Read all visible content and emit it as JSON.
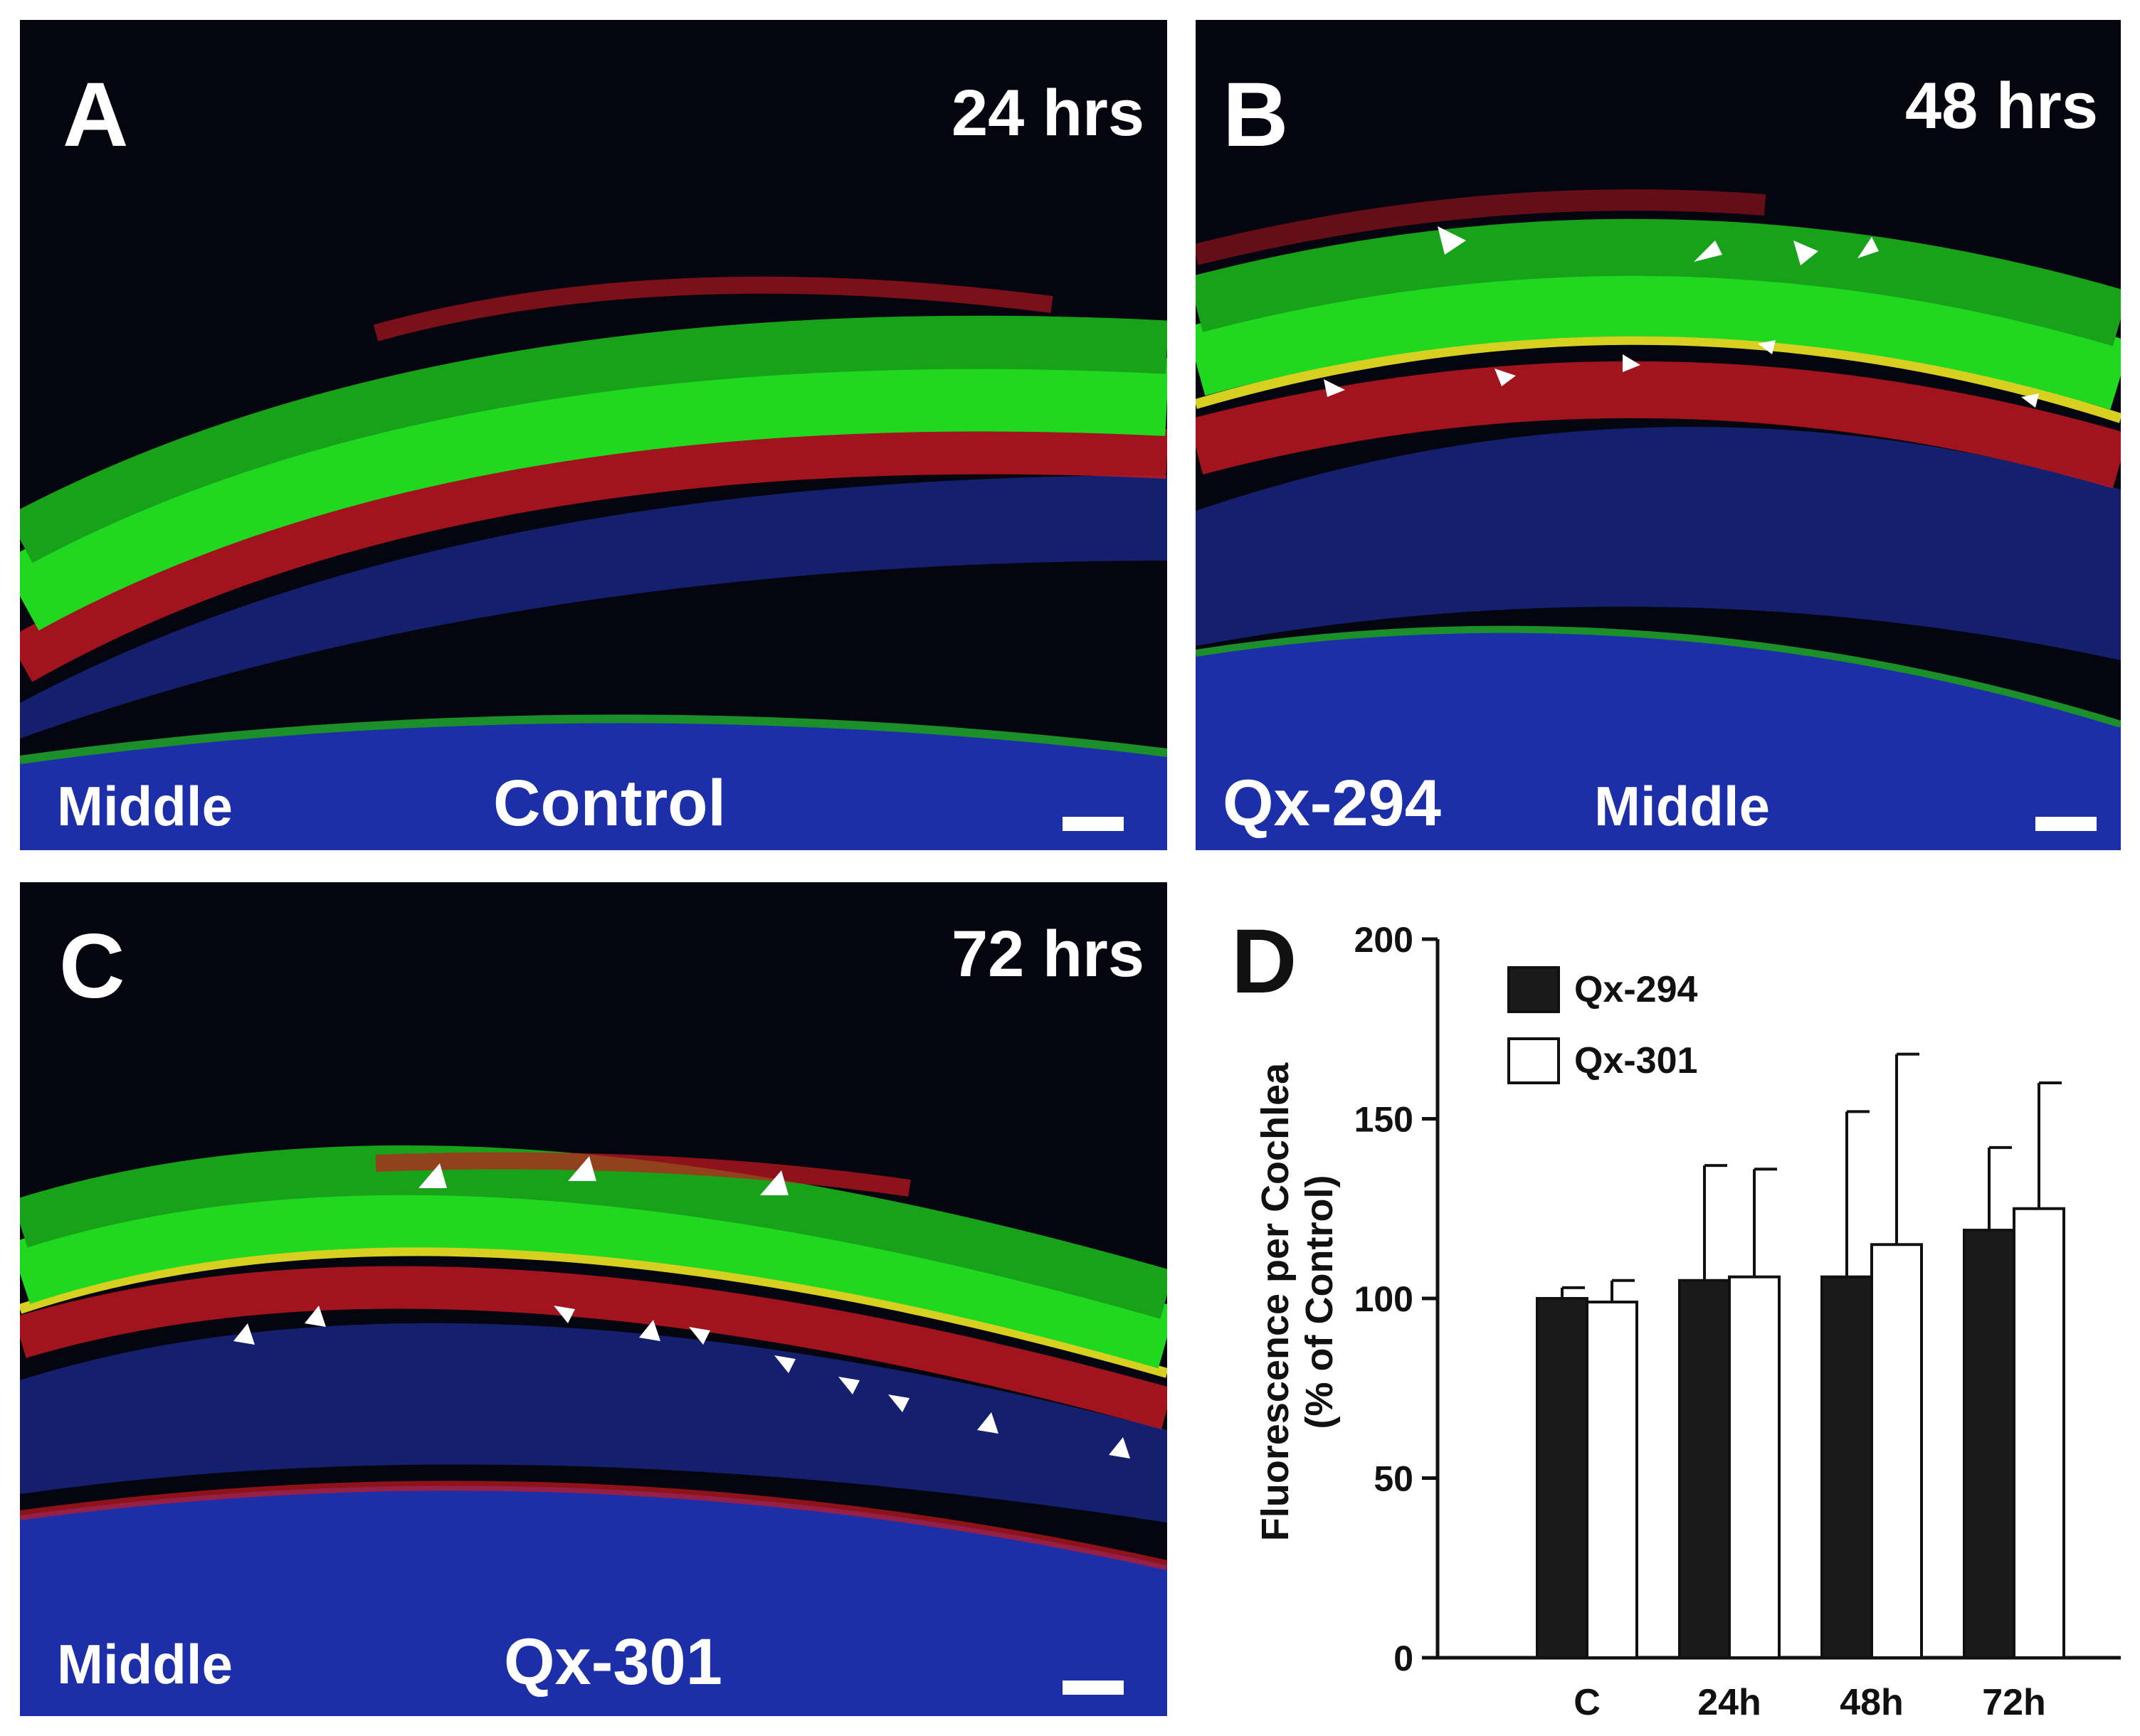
{
  "panels": [
    {
      "letter": "A",
      "time": "24 hrs",
      "region": "Middle",
      "condition": "Control"
    },
    {
      "letter": "B",
      "time": "48 hrs",
      "region": "Middle",
      "condition": "Qx-294"
    },
    {
      "letter": "C",
      "time": "72 hrs",
      "region": "Middle",
      "condition": "Qx-301"
    }
  ],
  "colors": {
    "hair_cells": "#1fd81f",
    "red_stain": "#e8202a",
    "nuclei": "#2a3fd0",
    "background": "#050510"
  },
  "chart_data": {
    "type": "bar",
    "panel_letter": "D",
    "categories": [
      "C",
      "24h",
      "48h",
      "72h"
    ],
    "series": [
      {
        "name": "Qx-294",
        "color": "#1a1a1a",
        "values": [
          100,
          105,
          106,
          119
        ],
        "errors": [
          3,
          32,
          46,
          23
        ]
      },
      {
        "name": "Qx-301",
        "color": "#ffffff",
        "values": [
          99,
          106,
          115,
          125
        ],
        "errors": [
          6,
          30,
          53,
          35
        ]
      }
    ],
    "ylabel_line1": "Fluorescence per Cochlea",
    "ylabel_line2": "(% of Control)",
    "xlabel": "",
    "ylim": [
      0,
      200
    ],
    "yticks": [
      0,
      50,
      100,
      150,
      200
    ],
    "legend_position": "top-left",
    "grid": false
  }
}
